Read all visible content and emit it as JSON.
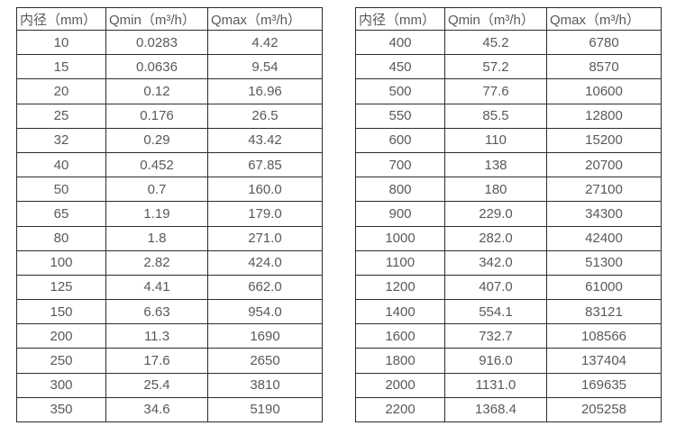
{
  "page": {
    "background": "#ffffff",
    "border_color": "#2d2d2d",
    "text_color": "#595959"
  },
  "tables": [
    {
      "columns": [
        "内径（mm）",
        "Qmin（m³/h）",
        "Qmax（m³/h）"
      ],
      "rows": [
        [
          "10",
          "0.0283",
          "4.42"
        ],
        [
          "15",
          "0.0636",
          "9.54"
        ],
        [
          "20",
          "0.12",
          "16.96"
        ],
        [
          "25",
          "0.176",
          "26.5"
        ],
        [
          "32",
          "0.29",
          "43.42"
        ],
        [
          "40",
          "0.452",
          "67.85"
        ],
        [
          "50",
          "0.7",
          "160.0"
        ],
        [
          "65",
          "1.19",
          "179.0"
        ],
        [
          "80",
          "1.8",
          "271.0"
        ],
        [
          "100",
          "2.82",
          "424.0"
        ],
        [
          "125",
          "4.41",
          "662.0"
        ],
        [
          "150",
          "6.63",
          "954.0"
        ],
        [
          "200",
          "11.3",
          "1690"
        ],
        [
          "250",
          "17.6",
          "2650"
        ],
        [
          "300",
          "25.4",
          "3810"
        ],
        [
          "350",
          "34.6",
          "5190"
        ]
      ]
    },
    {
      "columns": [
        "内径（mm）",
        "Qmin（m³/h）",
        "Qmax（m³/h）"
      ],
      "rows": [
        [
          "400",
          "45.2",
          "6780"
        ],
        [
          "450",
          "57.2",
          "8570"
        ],
        [
          "500",
          "77.6",
          "10600"
        ],
        [
          "550",
          "85.5",
          "12800"
        ],
        [
          "600",
          "110",
          "15200"
        ],
        [
          "700",
          "138",
          "20700"
        ],
        [
          "800",
          "180",
          "27100"
        ],
        [
          "900",
          "229.0",
          "34300"
        ],
        [
          "1000",
          "282.0",
          "42400"
        ],
        [
          "1100",
          "342.0",
          "51300"
        ],
        [
          "1200",
          "407.0",
          "61000"
        ],
        [
          "1400",
          "554.1",
          "83121"
        ],
        [
          "1600",
          "732.7",
          "108566"
        ],
        [
          "1800",
          "916.0",
          "137404"
        ],
        [
          "2000",
          "1131.0",
          "169635"
        ],
        [
          "2200",
          "1368.4",
          "205258"
        ]
      ]
    }
  ]
}
